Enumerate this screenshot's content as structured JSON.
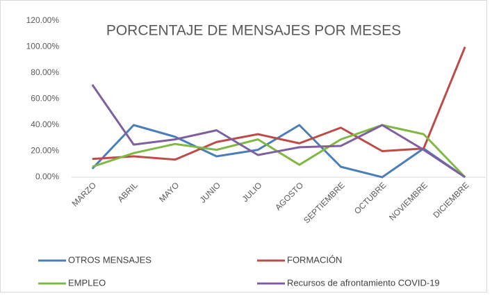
{
  "chart_data": {
    "type": "line",
    "title": "PORCENTAJE DE MENSAJES POR MESES",
    "categories": [
      "MARZO",
      "ABRIL",
      "MAYO",
      "JUNIO",
      "JULIO",
      "AGOSTO",
      "SEPTIEMBRE",
      "OCTUBRE",
      "NOVIEMBRE",
      "DICIEMBRE"
    ],
    "series": [
      {
        "name": "OTROS MENSAJES",
        "color": "#4a7ebb",
        "values": [
          6.5,
          40,
          31,
          16,
          21,
          40,
          8,
          0,
          22,
          0
        ]
      },
      {
        "name": "FORMACIÓN",
        "color": "#be4b48",
        "values": [
          14,
          16,
          13.5,
          27,
          33,
          26,
          38,
          20,
          22,
          100
        ]
      },
      {
        "name": "EMPLEO",
        "color": "#7fb842",
        "values": [
          8,
          18.5,
          25.5,
          21,
          29,
          9.5,
          29,
          40,
          33,
          0
        ]
      },
      {
        "name": "Recursos de afrontamiento COVID-19",
        "color": "#7f5fa0",
        "values": [
          71,
          25,
          29,
          36,
          17,
          23,
          24,
          40,
          21,
          0
        ]
      }
    ],
    "ylim": [
      0,
      120
    ],
    "yticks": [
      {
        "value": 0,
        "label": "0.00%"
      },
      {
        "value": 20,
        "label": "20.00%"
      },
      {
        "value": 40,
        "label": "40.00%"
      },
      {
        "value": 60,
        "label": "60.00%"
      },
      {
        "value": 80,
        "label": "80.00%"
      },
      {
        "value": 100,
        "label": "100.00%"
      },
      {
        "value": 120,
        "label": "120.00%"
      }
    ],
    "grid": false
  }
}
